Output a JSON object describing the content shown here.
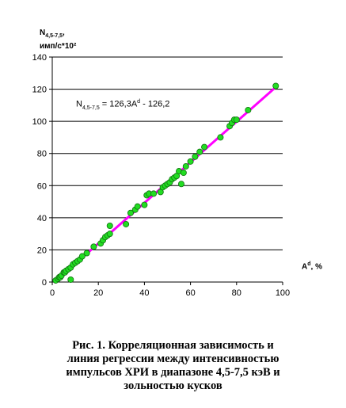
{
  "chart_data": {
    "type": "scatter",
    "title": "",
    "ylabel": {
      "main": "N",
      "sub": "4,5-7,5",
      "line2": "имп/с*10²"
    },
    "xlabel": {
      "main": "A",
      "sup": "d",
      "suffix": ", %"
    },
    "equation": {
      "lhs": "N",
      "lhs_sub": "4,5-7,5",
      "rhs_pre": " = 126,3A",
      "rhs_sup": "d",
      "rhs_post": " - 126,2"
    },
    "xlim": [
      0,
      100
    ],
    "ylim": [
      0,
      140
    ],
    "xticks": [
      0,
      20,
      40,
      60,
      80,
      100
    ],
    "yticks": [
      0,
      20,
      40,
      60,
      80,
      100,
      120,
      140
    ],
    "grid": "horizontal",
    "regression": {
      "slope": 1.263,
      "intercept": -1.262,
      "x_range": [
        1,
        97
      ],
      "color": "#ff00ff"
    },
    "marker_color": "#22dd22",
    "marker_edge": "#107010",
    "x": [
      1.5,
      2.5,
      3,
      3.5,
      4,
      5,
      5.5,
      6,
      7,
      8,
      8,
      9,
      10,
      11,
      12,
      13,
      15,
      18,
      21,
      22,
      23,
      24,
      25,
      25,
      32,
      34,
      36,
      37,
      40,
      41,
      42,
      44,
      47,
      48,
      49,
      50,
      51,
      52,
      53,
      54,
      55,
      56,
      57,
      58,
      60,
      62,
      64,
      66,
      73,
      77,
      78,
      79,
      80,
      85,
      97
    ],
    "y": [
      1,
      2,
      3,
      3,
      4,
      6,
      6,
      7,
      8,
      9,
      1.5,
      11,
      12,
      13,
      14,
      16,
      18,
      22,
      24,
      26,
      28,
      29,
      30,
      35,
      36,
      43,
      45,
      47,
      48,
      54,
      55,
      55,
      56,
      59,
      60,
      61,
      62,
      64,
      65,
      66,
      69,
      61,
      68,
      72,
      75,
      78,
      81,
      84,
      90,
      97,
      99,
      101,
      101,
      107,
      122
    ]
  },
  "caption": {
    "lines": [
      "Рис. 1. Корреляционная зависимость и",
      "линия регрессии между интенсивностью",
      "импульсов ХРИ в диапазоне 4,5-7,5 кэВ и",
      "зольностью  кусков"
    ]
  }
}
